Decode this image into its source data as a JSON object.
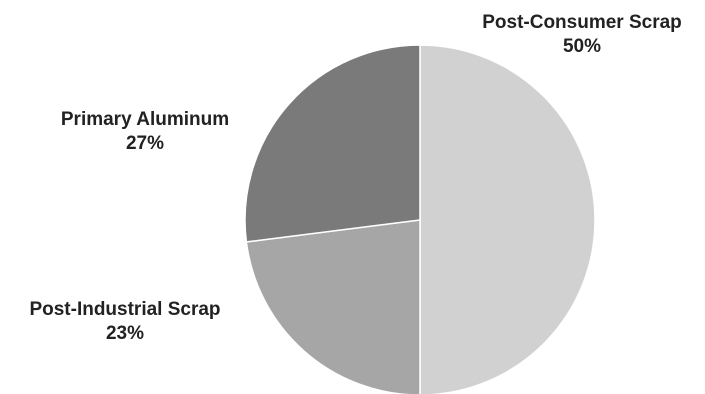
{
  "chart_data": {
    "type": "pie",
    "title": "",
    "slices": [
      {
        "label": "Post-Consumer Scrap",
        "percent_label": "50%",
        "value": 50,
        "color": "#d1d1d1"
      },
      {
        "label": "Post-Industrial Scrap",
        "percent_label": "23%",
        "value": 23,
        "color": "#a6a6a6"
      },
      {
        "label": "Primary Aluminum",
        "percent_label": "27%",
        "value": 27,
        "color": "#7a7a7a"
      }
    ],
    "start_angle_deg": 0,
    "direction": "clockwise",
    "legend": "none"
  }
}
